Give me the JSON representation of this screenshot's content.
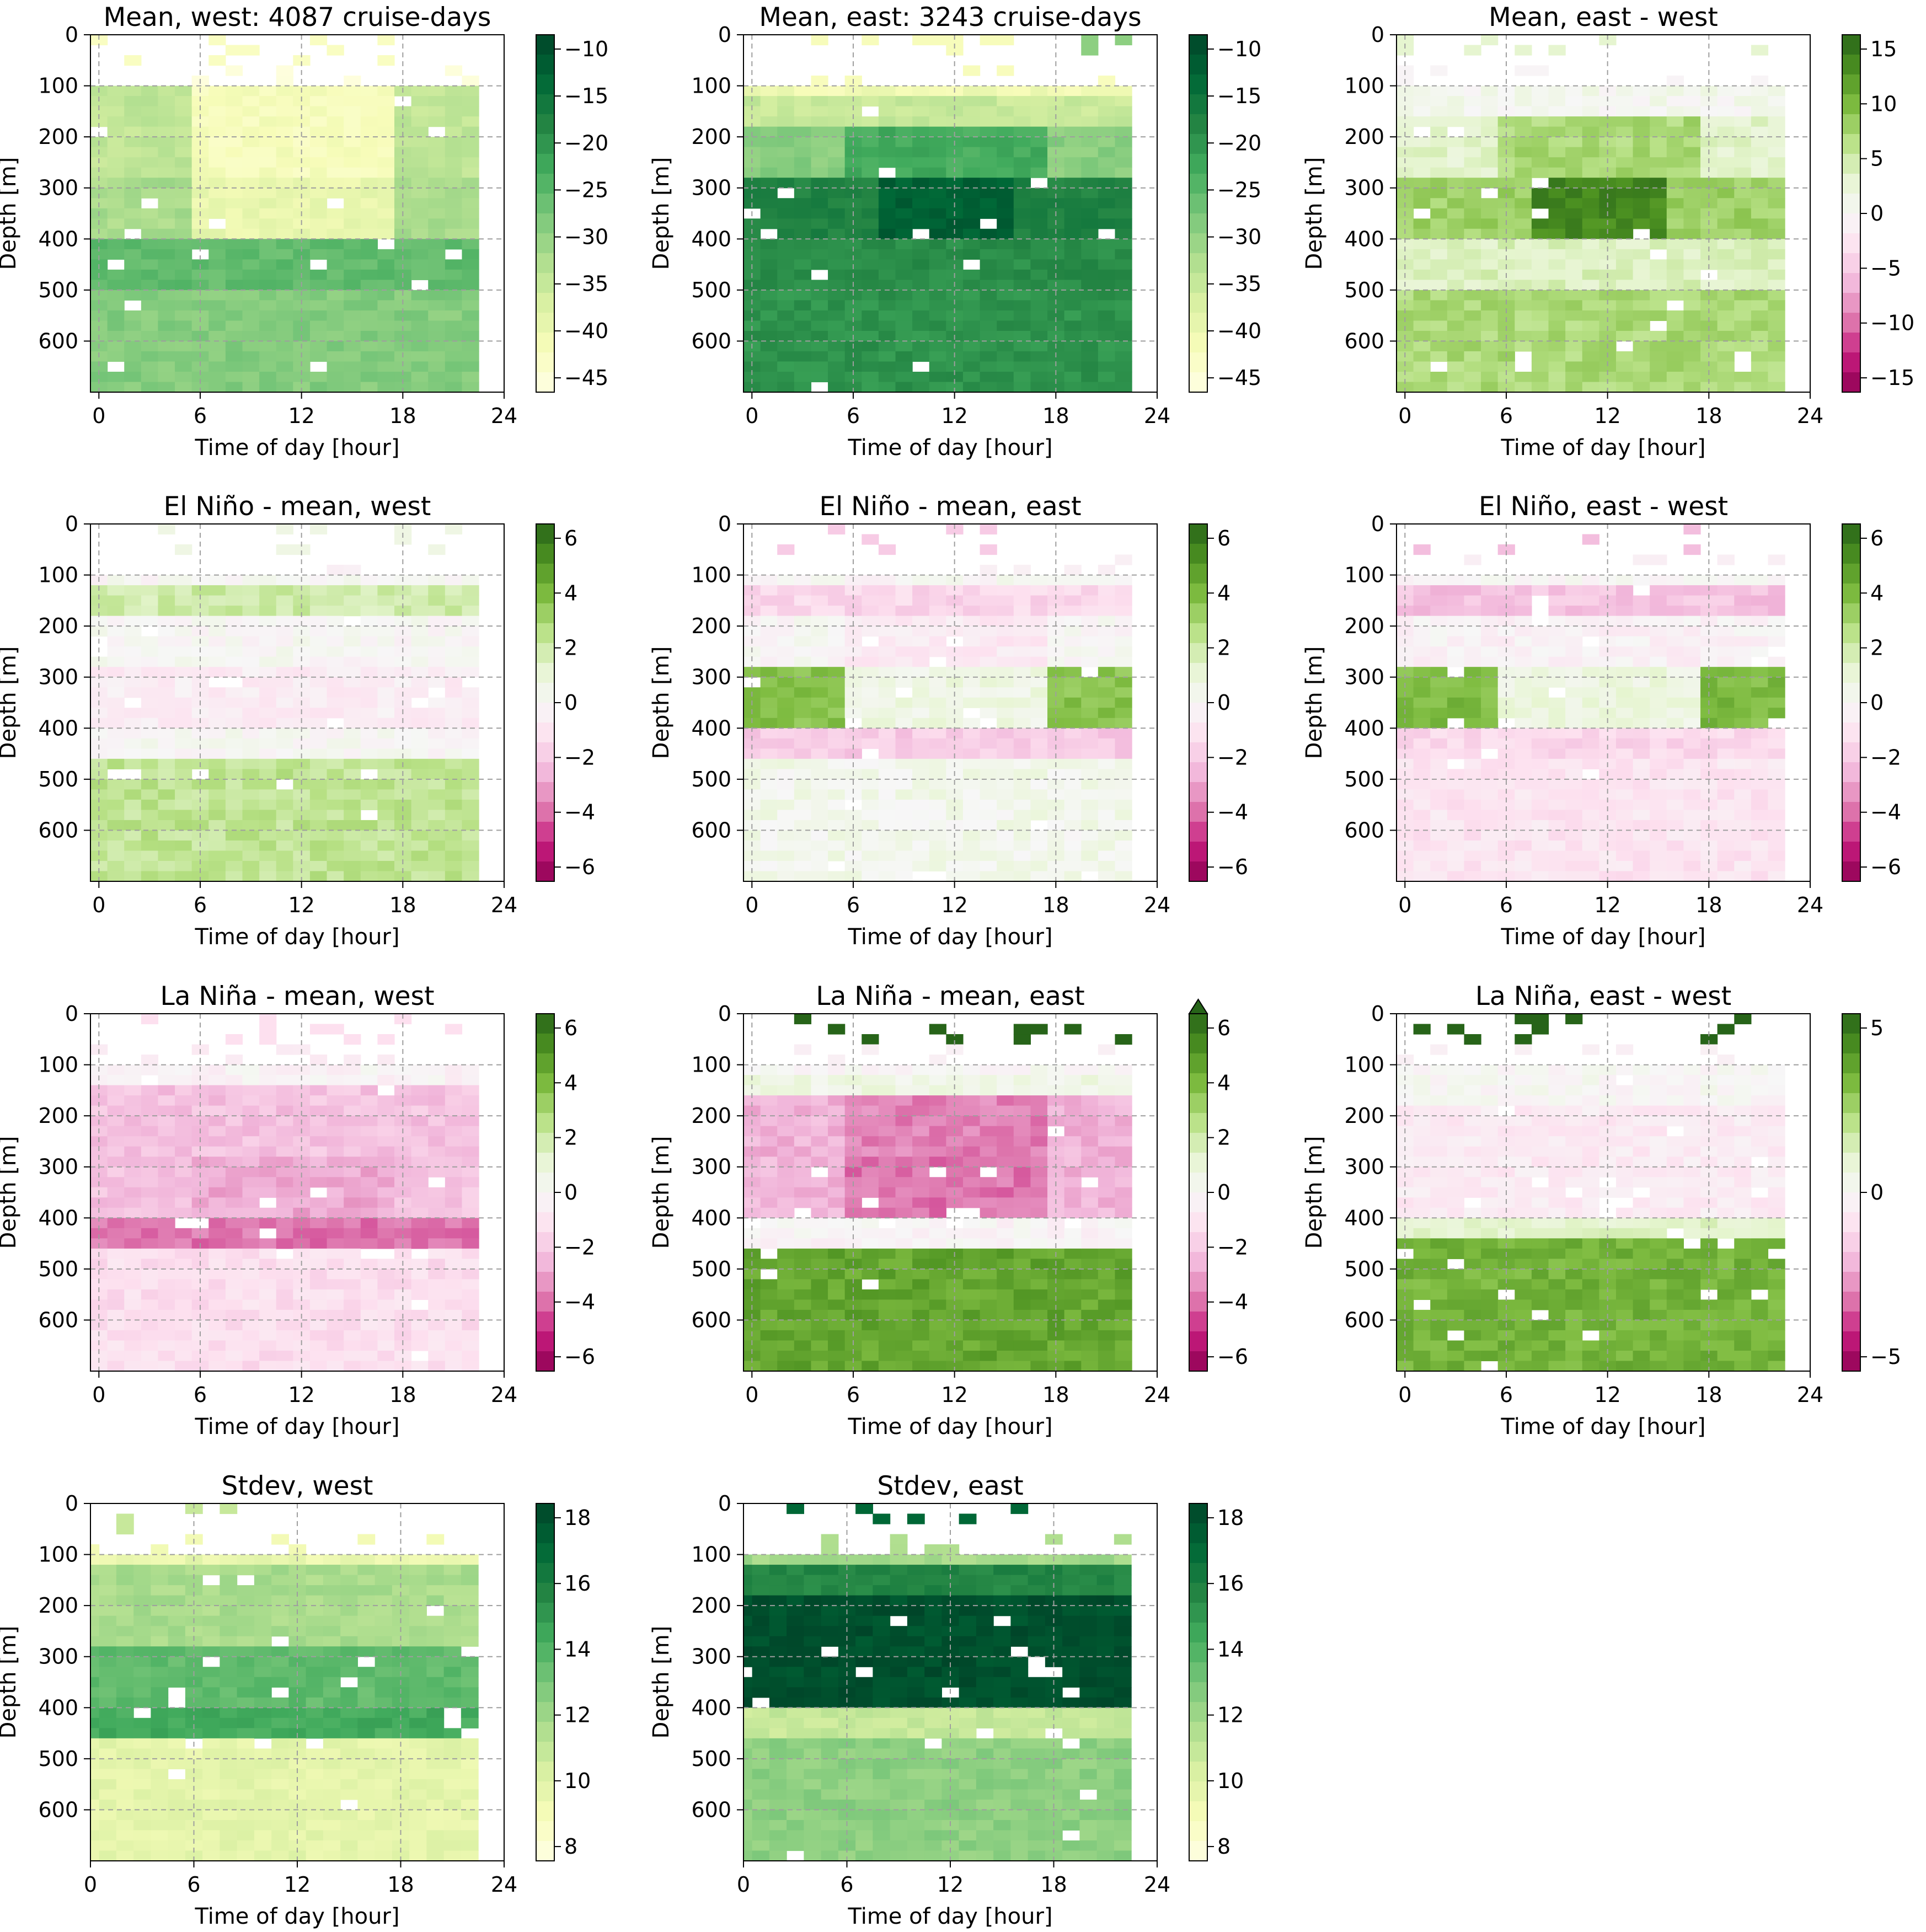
{
  "figure": {
    "panels": [
      {
        "title": "Mean, west: 4087 cruise-days",
        "colorbar_ticks": [
          "−10",
          "−15",
          "−20",
          "−25",
          "−30",
          "−35",
          "−40",
          "−45"
        ],
        "colormap": "green",
        "side": "west",
        "style": "west_mean"
      },
      {
        "title": "Mean, east: 3243 cruise-days",
        "colorbar_ticks": [
          "−10",
          "−15",
          "−20",
          "−25",
          "−30",
          "−35",
          "−40",
          "−45"
        ],
        "colormap": "green",
        "side": "east",
        "style": "east_mean"
      },
      {
        "title": "Mean, east - west",
        "colorbar_ticks": [
          "15",
          "10",
          "5",
          "0",
          "−5",
          "−10",
          "−15"
        ],
        "colormap": "diverging",
        "side": "both",
        "style": "mean_diff"
      },
      {
        "title": "El Niño - mean, west",
        "colorbar_ticks": [
          "6",
          "4",
          "2",
          "0",
          "−2",
          "−4",
          "−6"
        ],
        "colormap": "diverging",
        "side": "west",
        "style": "nino_west"
      },
      {
        "title": "El Niño - mean, east",
        "colorbar_ticks": [
          "6",
          "4",
          "2",
          "0",
          "−2",
          "−4",
          "−6"
        ],
        "colormap": "diverging",
        "side": "east",
        "style": "nino_east"
      },
      {
        "title": "El Niño, east - west",
        "colorbar_ticks": [
          "6",
          "4",
          "2",
          "0",
          "−2",
          "−4",
          "−6"
        ],
        "colormap": "diverging",
        "side": "both",
        "style": "nino_diff"
      },
      {
        "title": "La Niña - mean, west",
        "colorbar_ticks": [
          "6",
          "4",
          "2",
          "0",
          "−2",
          "−4",
          "−6"
        ],
        "colormap": "diverging",
        "side": "west",
        "style": "nina_west"
      },
      {
        "title": "La Niña - mean, east",
        "colorbar_ticks": [
          "6",
          "4",
          "2",
          "0",
          "−2",
          "−4",
          "−6"
        ],
        "colormap": "diverging",
        "side": "east",
        "style": "nina_east",
        "extend": "max"
      },
      {
        "title": "La Niña, east - west",
        "colorbar_ticks": [
          "5",
          "0",
          "−5"
        ],
        "colormap": "diverging",
        "side": "both",
        "style": "nina_diff"
      },
      {
        "title": "Stdev, west",
        "colorbar_ticks": [
          "18",
          "16",
          "14",
          "12",
          "10",
          "8"
        ],
        "colormap": "green",
        "side": "west",
        "style": "std_west",
        "x_start": 0
      },
      {
        "title": "Stdev, east",
        "colorbar_ticks": [
          "18",
          "16",
          "14",
          "12",
          "10",
          "8"
        ],
        "colormap": "green",
        "side": "east",
        "style": "std_east",
        "x_start": 0
      }
    ]
  },
  "chart_data": {
    "type": "heatmap",
    "xlabel": "Time of day [hour]",
    "ylabel": "Depth [m]",
    "x_ticks": [
      0,
      6,
      12,
      18,
      24
    ],
    "y_ticks": [
      0,
      100,
      200,
      300,
      400,
      500,
      600
    ],
    "xlim": [
      -0.5,
      24
    ],
    "ylim": [
      700,
      0
    ],
    "grid": true,
    "colors": {
      "green_scale": [
        "#ffffe5",
        "#f7fcb9",
        "#d9f0a3",
        "#addd8e",
        "#78c679",
        "#41ab5d",
        "#238443",
        "#006837",
        "#004529"
      ],
      "diverging_scale": [
        "#8e0152",
        "#c51b7d",
        "#de77ae",
        "#f1b6da",
        "#fde0ef",
        "#f7f7f7",
        "#e6f5d0",
        "#b8e186",
        "#7fbc41",
        "#4d9221",
        "#276419"
      ]
    }
  }
}
